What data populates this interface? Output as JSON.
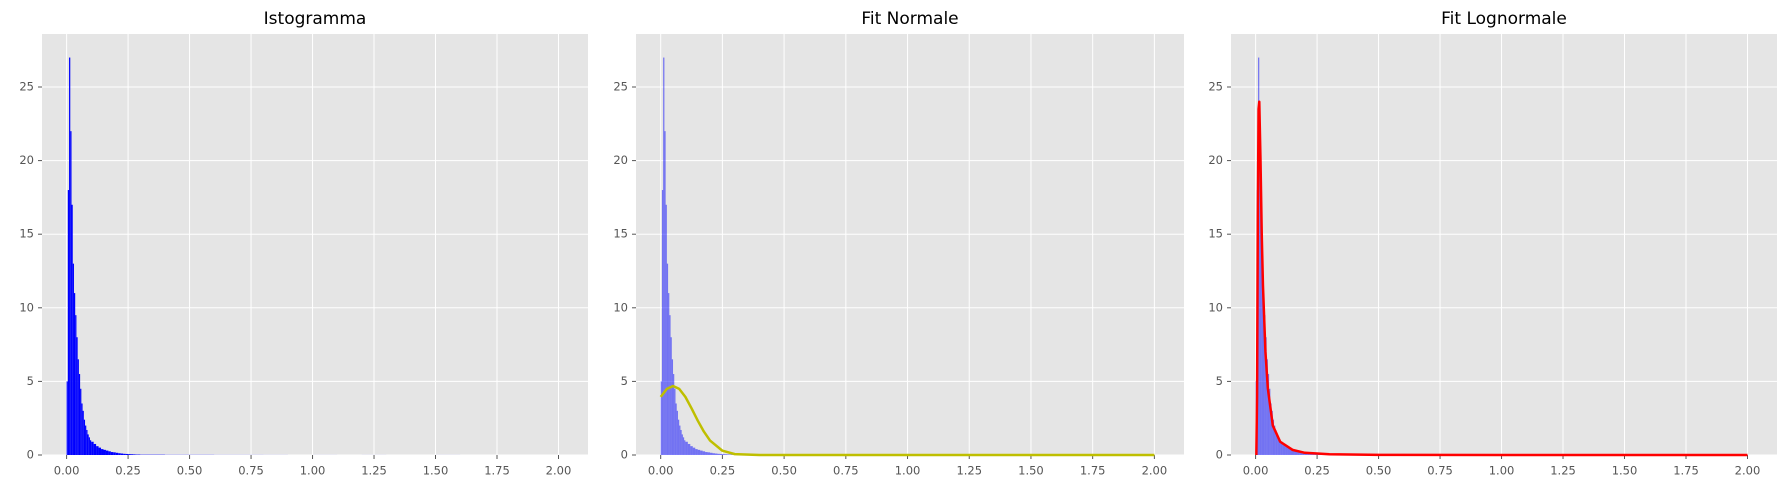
{
  "chart_data": [
    {
      "type": "histogram",
      "title": "Istogramma",
      "color": "#0000ff",
      "alpha": 1,
      "bins": [
        0,
        0.005,
        0.01,
        0.015,
        0.02,
        0.025,
        0.03,
        0.035,
        0.04,
        0.045,
        0.05,
        0.055,
        0.06,
        0.065,
        0.07,
        0.075,
        0.08,
        0.085,
        0.09,
        0.095,
        0.1,
        0.11,
        0.12,
        0.13,
        0.14,
        0.15,
        0.16,
        0.17,
        0.18,
        0.19,
        0.2,
        0.21,
        0.22,
        0.23,
        0.24,
        0.25,
        0.26,
        0.27,
        0.28,
        0.29,
        0.3,
        0.4,
        0.5,
        0.6,
        0.7,
        0.8,
        0.9,
        1.0,
        1.1,
        1.2,
        1.3,
        1.4,
        1.5,
        1.6,
        1.7,
        1.8,
        1.9,
        2.0
      ],
      "counts": [
        5,
        18,
        27,
        22,
        17,
        13,
        11,
        9.5,
        8,
        6.5,
        5.5,
        4.5,
        3.5,
        3,
        2.4,
        2,
        1.7,
        1.4,
        1.2,
        1,
        0.9,
        0.75,
        0.6,
        0.5,
        0.4,
        0.35,
        0.3,
        0.25,
        0.2,
        0.18,
        0.15,
        0.12,
        0.1,
        0.08,
        0.07,
        0.06,
        0.05,
        0.04,
        0.03,
        0.03,
        0.02,
        0.01,
        0.01,
        0.005,
        0.005,
        0.003,
        0,
        0.002,
        0,
        0.002,
        0,
        0,
        0.002,
        0,
        0,
        0,
        0
      ],
      "xlim": [
        -0.1,
        2.12
      ],
      "ylim": [
        0,
        28.6
      ],
      "xticks": [
        {
          "value": 0,
          "label": "0.00"
        },
        0.25,
        {
          "value": 0.5,
          "label": "0.50"
        },
        0.75,
        {
          "value": 1,
          "label": "1.00"
        },
        1.25,
        {
          "value": 1.5,
          "label": "1.50"
        },
        1.75,
        {
          "value": 2,
          "label": "2.00"
        }
      ],
      "yticks": [
        0,
        5,
        10,
        15,
        20,
        25
      ],
      "grid": true
    },
    {
      "type": "histogram",
      "title": "Fit Normale",
      "color": "#0000ff",
      "alpha": 0.5,
      "bins": [
        0,
        0.005,
        0.01,
        0.015,
        0.02,
        0.025,
        0.03,
        0.035,
        0.04,
        0.045,
        0.05,
        0.055,
        0.06,
        0.065,
        0.07,
        0.075,
        0.08,
        0.085,
        0.09,
        0.095,
        0.1,
        0.11,
        0.12,
        0.13,
        0.14,
        0.15,
        0.16,
        0.17,
        0.18,
        0.19,
        0.2,
        0.21,
        0.22,
        0.23,
        0.24,
        0.25,
        0.26,
        0.27,
        0.28,
        0.29,
        0.3,
        0.4,
        0.5,
        0.6,
        0.7,
        0.8,
        0.9,
        1.0,
        1.1,
        1.2,
        1.3,
        1.4,
        1.5,
        1.6,
        1.7,
        1.8,
        1.9,
        2.0
      ],
      "counts": [
        5,
        18,
        27,
        22,
        17,
        13,
        11,
        9.5,
        8,
        6.5,
        5.5,
        4.5,
        3.5,
        3,
        2.4,
        2,
        1.7,
        1.4,
        1.2,
        1,
        0.9,
        0.75,
        0.6,
        0.5,
        0.4,
        0.35,
        0.3,
        0.25,
        0.2,
        0.18,
        0.15,
        0.12,
        0.1,
        0.08,
        0.07,
        0.06,
        0.05,
        0.04,
        0.03,
        0.03,
        0.02,
        0.01,
        0.01,
        0.005,
        0.005,
        0.003,
        0,
        0.002,
        0,
        0.002,
        0,
        0,
        0.002,
        0,
        0,
        0,
        0
      ],
      "lines": [
        {
          "color": "#bfbf00",
          "x": [
            0,
            0.025,
            0.05,
            0.075,
            0.1,
            0.125,
            0.15,
            0.175,
            0.2,
            0.25,
            0.3,
            0.4,
            1,
            2
          ],
          "values": [
            3.95,
            4.49,
            4.69,
            4.49,
            3.95,
            3.17,
            2.34,
            1.59,
            0.98,
            0.29,
            0.06,
            0,
            0,
            0
          ]
        }
      ],
      "xlim": [
        -0.1,
        2.12
      ],
      "ylim": [
        0,
        28.6
      ],
      "xticks": [
        {
          "value": 0,
          "label": "0.00"
        },
        0.25,
        {
          "value": 0.5,
          "label": "0.50"
        },
        0.75,
        {
          "value": 1,
          "label": "1.00"
        },
        1.25,
        {
          "value": 1.5,
          "label": "1.50"
        },
        1.75,
        {
          "value": 2,
          "label": "2.00"
        }
      ],
      "yticks": [
        0,
        5,
        10,
        15,
        20,
        25
      ],
      "grid": true
    },
    {
      "type": "histogram",
      "title": "Fit Lognormale",
      "color": "#0000ff",
      "alpha": 0.5,
      "bins": [
        0,
        0.005,
        0.01,
        0.015,
        0.02,
        0.025,
        0.03,
        0.035,
        0.04,
        0.045,
        0.05,
        0.055,
        0.06,
        0.065,
        0.07,
        0.075,
        0.08,
        0.085,
        0.09,
        0.095,
        0.1,
        0.11,
        0.12,
        0.13,
        0.14,
        0.15,
        0.16,
        0.17,
        0.18,
        0.19,
        0.2,
        0.21,
        0.22,
        0.23,
        0.24,
        0.25,
        0.26,
        0.27,
        0.28,
        0.29,
        0.3,
        0.4,
        0.5,
        0.6,
        0.7,
        0.8,
        0.9,
        1.0,
        1.1,
        1.2,
        1.3,
        1.4,
        1.5,
        1.6,
        1.7,
        1.8,
        1.9,
        2.0
      ],
      "counts": [
        5,
        18,
        27,
        22,
        17,
        13,
        11,
        9.5,
        8,
        6.5,
        5.5,
        4.5,
        3.5,
        3,
        2.4,
        2,
        1.7,
        1.4,
        1.2,
        1,
        0.9,
        0.75,
        0.6,
        0.5,
        0.4,
        0.35,
        0.3,
        0.25,
        0.2,
        0.18,
        0.15,
        0.12,
        0.1,
        0.08,
        0.07,
        0.06,
        0.05,
        0.04,
        0.03,
        0.03,
        0.02,
        0.01,
        0.01,
        0.005,
        0.005,
        0.003,
        0,
        0.002,
        0,
        0.002,
        0,
        0,
        0.002,
        0,
        0,
        0,
        0
      ],
      "lines": [
        {
          "color": "#ff0000",
          "x": [
            0.003,
            0.006,
            0.009,
            0.012,
            0.015,
            0.02,
            0.025,
            0.03,
            0.04,
            0.05,
            0.07,
            0.1,
            0.15,
            0.2,
            0.3,
            0.5,
            1,
            2
          ],
          "values": [
            0,
            4,
            16,
            23.5,
            24,
            20,
            15,
            11.5,
            7,
            4.5,
            2,
            0.9,
            0.35,
            0.15,
            0.05,
            0.01,
            0,
            0
          ]
        }
      ],
      "xlim": [
        -0.1,
        2.12
      ],
      "ylim": [
        0,
        28.6
      ],
      "xticks": [
        {
          "value": 0,
          "label": "0.00"
        },
        0.25,
        {
          "value": 0.5,
          "label": "0.50"
        },
        0.75,
        {
          "value": 1,
          "label": "1.00"
        },
        1.25,
        {
          "value": 1.5,
          "label": "1.50"
        },
        1.75,
        {
          "value": 2,
          "label": "2.00"
        }
      ],
      "yticks": [
        0,
        5,
        10,
        15,
        20,
        25
      ],
      "grid": true
    }
  ]
}
